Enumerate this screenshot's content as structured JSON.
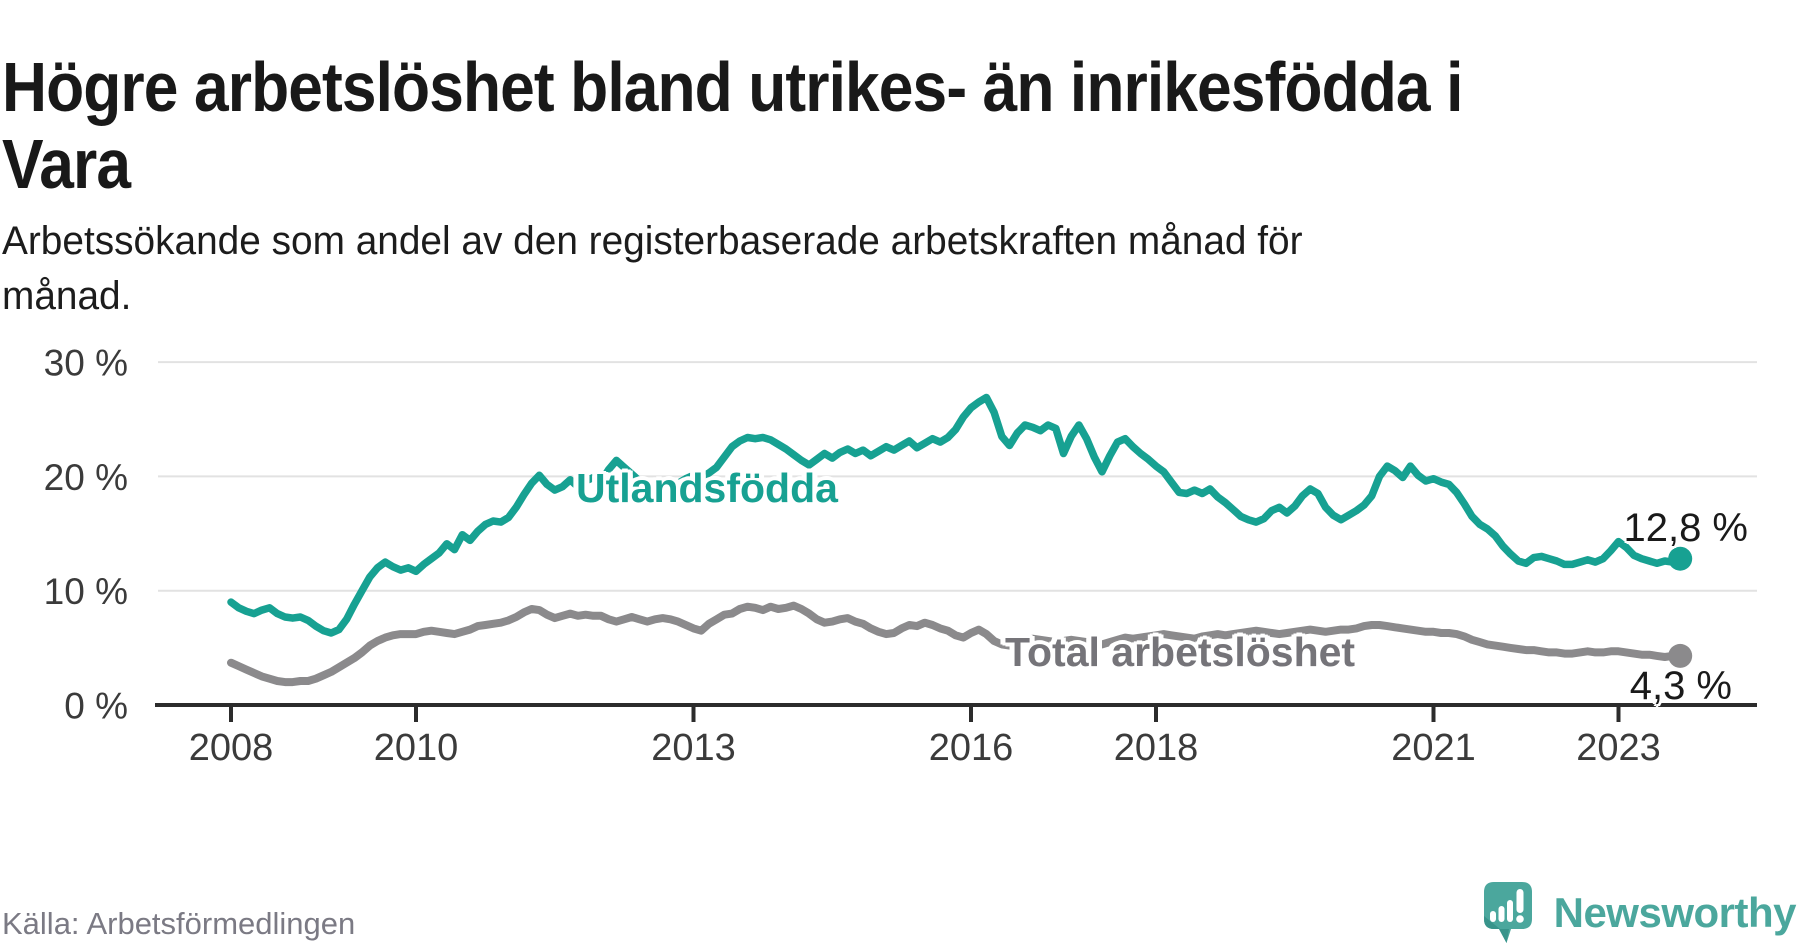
{
  "header": {
    "title_line1": "Högre arbetslöshet bland utrikes- än inrikesfödda i",
    "title_line2": "Vara",
    "subtitle_line1": "Arbetssökande som andel av den registerbaserade arbetskraften månad för",
    "subtitle_line2": "månad."
  },
  "footer": {
    "source": "Källa: Arbetsförmedlingen",
    "brand": "Newsworthy"
  },
  "colors": {
    "foreign_born_line": "#17A192",
    "total_line": "#8B8A8C",
    "total_label": "#757479",
    "grid": "#E2E2E2",
    "axis": "#2C2C2C",
    "tick_label": "#3B3B3B",
    "value_label": "#1A1A1A",
    "brand_teal": "#4BA79D",
    "brand_teal_dark": "#359088"
  },
  "chart_data": {
    "type": "line",
    "frequency": "monthly",
    "x_start": "2008-01",
    "x_end": "2023-09",
    "xlabel": "",
    "ylabel": "",
    "ylim": [
      0,
      30
    ],
    "grid": "horizontal",
    "legend_position": "inline-labels",
    "y_ticks": [
      {
        "value": 30,
        "label": "30 %"
      },
      {
        "value": 20,
        "label": "20 %"
      },
      {
        "value": 10,
        "label": "10 %"
      },
      {
        "value": 0,
        "label": "0 %"
      }
    ],
    "x_ticks": [
      {
        "value": 2008,
        "label": "2008"
      },
      {
        "value": 2010,
        "label": "2010"
      },
      {
        "value": 2013,
        "label": "2013"
      },
      {
        "value": 2016,
        "label": "2016"
      },
      {
        "value": 2018,
        "label": "2018"
      },
      {
        "value": 2021,
        "label": "2021"
      },
      {
        "value": 2023,
        "label": "2023"
      }
    ],
    "series": [
      {
        "name": "Utlandsfödda",
        "color": "#17A192",
        "end_label": "12,8 %",
        "end_value": 12.8,
        "values": [
          9.0,
          8.5,
          8.2,
          8.0,
          8.3,
          8.5,
          8.0,
          7.7,
          7.6,
          7.7,
          7.4,
          6.9,
          6.5,
          6.3,
          6.6,
          7.5,
          8.8,
          10.0,
          11.2,
          12.0,
          12.5,
          12.1,
          11.8,
          12.0,
          11.7,
          12.3,
          12.8,
          13.3,
          14.1,
          13.6,
          14.9,
          14.4,
          15.2,
          15.8,
          16.1,
          16.0,
          16.4,
          17.3,
          18.4,
          19.4,
          20.1,
          19.3,
          18.8,
          19.1,
          19.7,
          19.1,
          19.6,
          19.9,
          19.5,
          20.6,
          21.4,
          20.8,
          20.2,
          19.6,
          19.2,
          19.0,
          19.3,
          19.6,
          19.4,
          19.8,
          20.1,
          19.9,
          20.3,
          20.8,
          21.7,
          22.6,
          23.1,
          23.4,
          23.3,
          23.4,
          23.2,
          22.8,
          22.4,
          21.9,
          21.4,
          21.0,
          21.5,
          22.0,
          21.6,
          22.1,
          22.4,
          22.0,
          22.3,
          21.8,
          22.2,
          22.6,
          22.3,
          22.7,
          23.1,
          22.5,
          22.9,
          23.3,
          23.0,
          23.4,
          24.1,
          25.2,
          26.0,
          26.5,
          26.9,
          25.6,
          23.5,
          22.7,
          23.8,
          24.5,
          24.3,
          24.0,
          24.5,
          24.2,
          22.0,
          23.5,
          24.5,
          23.3,
          21.7,
          20.4,
          21.8,
          23.0,
          23.3,
          22.6,
          22.0,
          21.5,
          20.9,
          20.4,
          19.5,
          18.6,
          18.5,
          18.8,
          18.5,
          18.9,
          18.2,
          17.7,
          17.1,
          16.5,
          16.2,
          16.0,
          16.3,
          17.0,
          17.3,
          16.8,
          17.4,
          18.3,
          18.9,
          18.5,
          17.3,
          16.6,
          16.2,
          16.6,
          17.0,
          17.5,
          18.3,
          20.0,
          20.9,
          20.5,
          19.9,
          20.9,
          20.1,
          19.6,
          19.8,
          19.5,
          19.3,
          18.6,
          17.6,
          16.5,
          15.8,
          15.4,
          14.8,
          13.9,
          13.2,
          12.6,
          12.4,
          12.9,
          13.0,
          12.8,
          12.6,
          12.3,
          12.3,
          12.5,
          12.7,
          12.5,
          12.8,
          13.5,
          14.3,
          13.8,
          13.1,
          12.8,
          12.6,
          12.4,
          12.6,
          12.5,
          12.8
        ]
      },
      {
        "name": "Total arbetslöshet",
        "color": "#8B8A8C",
        "end_label": "4,3 %",
        "end_value": 4.3,
        "values": [
          3.7,
          3.4,
          3.1,
          2.8,
          2.5,
          2.3,
          2.1,
          2.0,
          2.0,
          2.1,
          2.1,
          2.3,
          2.6,
          2.9,
          3.3,
          3.7,
          4.1,
          4.6,
          5.2,
          5.6,
          5.9,
          6.1,
          6.2,
          6.2,
          6.2,
          6.4,
          6.5,
          6.4,
          6.3,
          6.2,
          6.4,
          6.6,
          6.9,
          7.0,
          7.1,
          7.2,
          7.4,
          7.7,
          8.1,
          8.4,
          8.3,
          7.9,
          7.6,
          7.8,
          8.0,
          7.8,
          7.9,
          7.8,
          7.8,
          7.5,
          7.3,
          7.5,
          7.7,
          7.5,
          7.3,
          7.5,
          7.6,
          7.5,
          7.3,
          7.0,
          6.7,
          6.5,
          7.1,
          7.5,
          7.9,
          8.0,
          8.4,
          8.6,
          8.5,
          8.3,
          8.6,
          8.4,
          8.5,
          8.7,
          8.4,
          8.0,
          7.5,
          7.2,
          7.3,
          7.5,
          7.6,
          7.3,
          7.1,
          6.7,
          6.4,
          6.2,
          6.3,
          6.7,
          7.0,
          6.9,
          7.2,
          7.0,
          6.7,
          6.5,
          6.1,
          5.9,
          6.3,
          6.6,
          6.2,
          5.6,
          5.3,
          5.2,
          5.4,
          5.6,
          5.8,
          5.7,
          5.6,
          5.5,
          5.6,
          5.7,
          5.6,
          5.5,
          5.4,
          5.3,
          5.5,
          5.7,
          5.9,
          5.8,
          5.9,
          6.0,
          6.1,
          6.2,
          6.1,
          6.0,
          5.9,
          5.8,
          6.0,
          6.1,
          6.2,
          6.1,
          6.2,
          6.3,
          6.4,
          6.5,
          6.4,
          6.3,
          6.2,
          6.3,
          6.4,
          6.5,
          6.6,
          6.5,
          6.4,
          6.5,
          6.6,
          6.6,
          6.7,
          6.9,
          7.0,
          7.0,
          6.9,
          6.8,
          6.7,
          6.6,
          6.5,
          6.4,
          6.4,
          6.3,
          6.3,
          6.2,
          6.0,
          5.7,
          5.5,
          5.3,
          5.2,
          5.1,
          5.0,
          4.9,
          4.8,
          4.8,
          4.7,
          4.6,
          4.6,
          4.5,
          4.5,
          4.6,
          4.7,
          4.6,
          4.6,
          4.7,
          4.7,
          4.6,
          4.5,
          4.4,
          4.4,
          4.3,
          4.2,
          4.3,
          4.3
        ]
      }
    ]
  }
}
